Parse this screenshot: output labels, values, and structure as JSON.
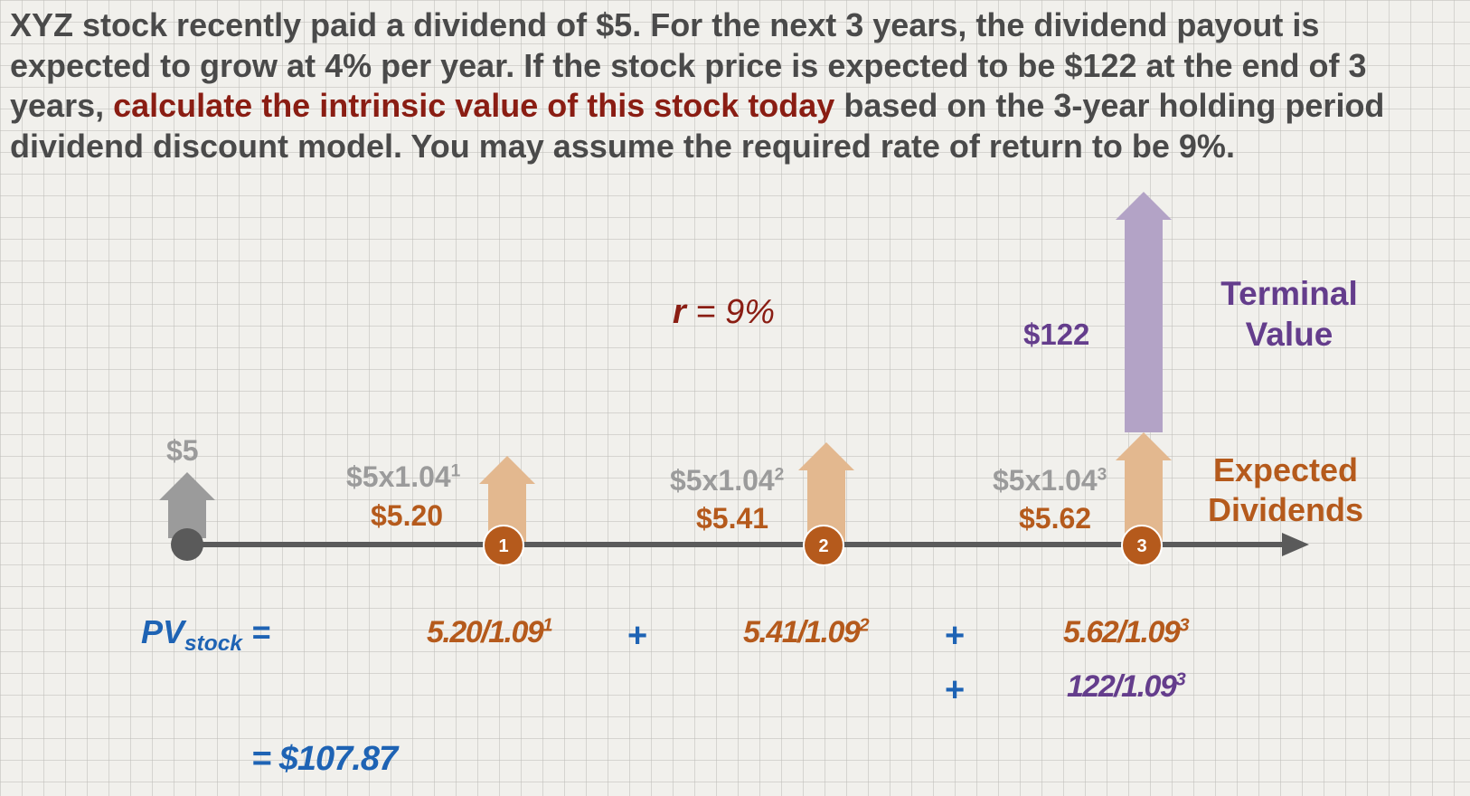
{
  "problem": {
    "text_before": "XYZ stock recently paid a dividend of $5.  For the next 3 years, the dividend payout is expected to grow at 4% per year.  If the stock price is expected to be $122 at the end of 3 years, ",
    "highlight": "calculate the intrinsic value of this stock today",
    "text_after": " based on the 3-year holding period dividend discount model.  You may assume the required rate of return to be 9%."
  },
  "rate": {
    "symbol": "r",
    "rest": " = 9%"
  },
  "terminal": {
    "title": "Terminal Value",
    "amount": "$122"
  },
  "expected_label": "Expected Dividends",
  "timeline": {
    "d0": "$5",
    "points": [
      {
        "num": "1",
        "expr": "$5x1.04",
        "exp": "1",
        "value": "$5.20"
      },
      {
        "num": "2",
        "expr": "$5x1.04",
        "exp": "2",
        "value": "$5.41"
      },
      {
        "num": "3",
        "expr": "$5x1.04",
        "exp": "3",
        "value": "$5.62"
      }
    ]
  },
  "pv": {
    "label_pv": "PV",
    "label_sub": "stock",
    "label_eq": " =",
    "terms": [
      {
        "base": "5.20/1.09",
        "exp": "1"
      },
      {
        "base": "5.41/1.09",
        "exp": "2"
      },
      {
        "base": "5.62/1.09",
        "exp": "3"
      },
      {
        "base": "122/1.09",
        "exp": "3"
      }
    ],
    "plus": "+",
    "result": "= $107.87"
  },
  "colors": {
    "gray_arrow": "#9b9b9b",
    "orange_arrow": "#e3b88f",
    "purple_arrow": "#b3a3c6",
    "timeline": "#5a5a5a",
    "node": "#b55a1c",
    "title_text": "#4a4a4a",
    "highlight": "#8a1d13",
    "blue": "#1e63b4",
    "purple": "#643d8c"
  }
}
